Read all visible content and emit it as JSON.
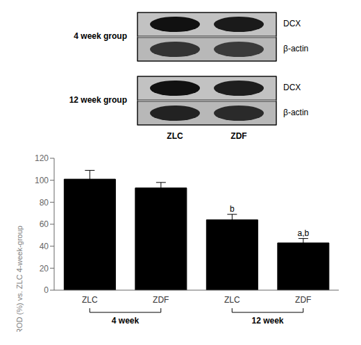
{
  "chart_data": {
    "type": "bar",
    "categories": [
      "ZLC",
      "ZDF",
      "ZLC",
      "ZDF"
    ],
    "groups": [
      "4 week",
      "4 week",
      "12 week",
      "12 week"
    ],
    "values": [
      101,
      93,
      64,
      43
    ],
    "errors": [
      8,
      5,
      5,
      4
    ],
    "significance": [
      null,
      null,
      "b",
      "a,b"
    ],
    "color": "#000000",
    "ylabel": "ROD (%) vs. ZLC 4-week-group",
    "ylim": [
      0,
      120
    ],
    "yticks": [
      0,
      20,
      40,
      60,
      80,
      100,
      120
    ],
    "grid": false,
    "annotations": [
      "4 week group",
      "12 week group",
      "DCX",
      "β-actin",
      "DCX",
      "β-actin",
      "ZLC",
      "ZDF"
    ]
  }
}
